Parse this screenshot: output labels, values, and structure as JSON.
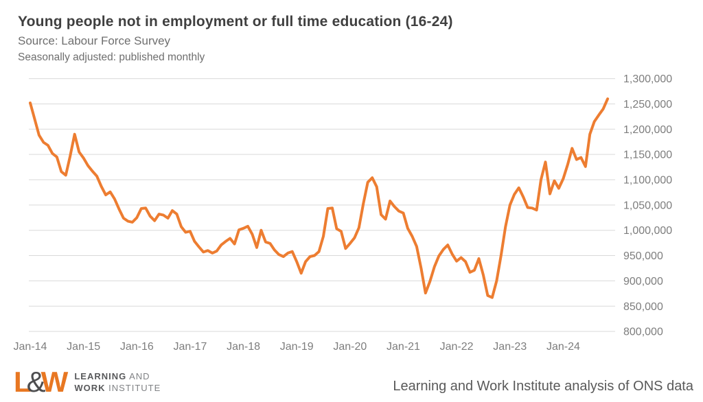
{
  "header": {
    "title": "Young people not in employment or full time education (16-24)",
    "source": "Source: Labour Force Survey",
    "note": "Seasonally adjusted: published monthly"
  },
  "chart_data": {
    "type": "line",
    "title": "Young people not in employment or full time education (16-24)",
    "series": [
      {
        "name": "Young people not in employment or full time education (16-24), seasonally adjusted, monthly",
        "start": "Jan-14",
        "end": "Nov-24",
        "frequency": "monthly",
        "values": [
          1252000,
          1220000,
          1188000,
          1174000,
          1168000,
          1152000,
          1145000,
          1116000,
          1109000,
          1147000,
          1190000,
          1155000,
          1143000,
          1128000,
          1117000,
          1107000,
          1087000,
          1070000,
          1076000,
          1062000,
          1042000,
          1024000,
          1018000,
          1016000,
          1025000,
          1043000,
          1044000,
          1028000,
          1019000,
          1032000,
          1030000,
          1024000,
          1039000,
          1032000,
          1007000,
          996000,
          998000,
          978000,
          967000,
          957000,
          960000,
          955000,
          959000,
          971000,
          978000,
          984000,
          973000,
          1001000,
          1004000,
          1008000,
          992000,
          966000,
          1000000,
          977000,
          974000,
          961000,
          952000,
          948000,
          955000,
          958000,
          938000,
          915000,
          938000,
          948000,
          950000,
          958000,
          988000,
          1043000,
          1044000,
          1003000,
          998000,
          964000,
          974000,
          985000,
          1005000,
          1053000,
          1095000,
          1104000,
          1086000,
          1031000,
          1022000,
          1058000,
          1047000,
          1038000,
          1034000,
          1004000,
          988000,
          968000,
          925000,
          876000,
          899000,
          928000,
          949000,
          962000,
          971000,
          953000,
          939000,
          946000,
          938000,
          917000,
          921000,
          944000,
          912000,
          871000,
          867000,
          900000,
          950000,
          1007000,
          1050000,
          1071000,
          1084000,
          1066000,
          1045000,
          1044000,
          1040000,
          1100000,
          1135000,
          1072000,
          1098000,
          1083000,
          1102000,
          1130000,
          1162000,
          1140000,
          1144000,
          1126000,
          1190000,
          1215000,
          1228000,
          1240000,
          1260000
        ]
      }
    ],
    "x_tick_labels": [
      "Jan-14",
      "Jan-15",
      "Jan-16",
      "Jan-17",
      "Jan-18",
      "Jan-19",
      "Jan-20",
      "Jan-21",
      "Jan-22",
      "Jan-23",
      "Jan-24"
    ],
    "y_tick_values": [
      800000,
      850000,
      900000,
      950000,
      1000000,
      1050000,
      1100000,
      1150000,
      1200000,
      1250000,
      1300000
    ],
    "y_tick_labels": [
      "800,000",
      "850,000",
      "900,000",
      "950,000",
      "1,000,000",
      "1,050,000",
      "1,100,000",
      "1,150,000",
      "1,200,000",
      "1,250,000",
      "1,300,000"
    ],
    "ylim": [
      800000,
      1300000
    ],
    "grid": true,
    "legend": false,
    "line_color": "#ED7D31",
    "grid_color": "#D9D9D9",
    "tick_color": "#7d7d7d"
  },
  "footer": {
    "logo": {
      "l": "L",
      "amp": "&",
      "w": "W",
      "line1_bold": "LEARNING",
      "line1_rest": " AND",
      "line2_bold": "WORK",
      "line2_rest": " INSTITUTE"
    },
    "attribution": "Learning and Work Institute analysis of ONS data"
  }
}
